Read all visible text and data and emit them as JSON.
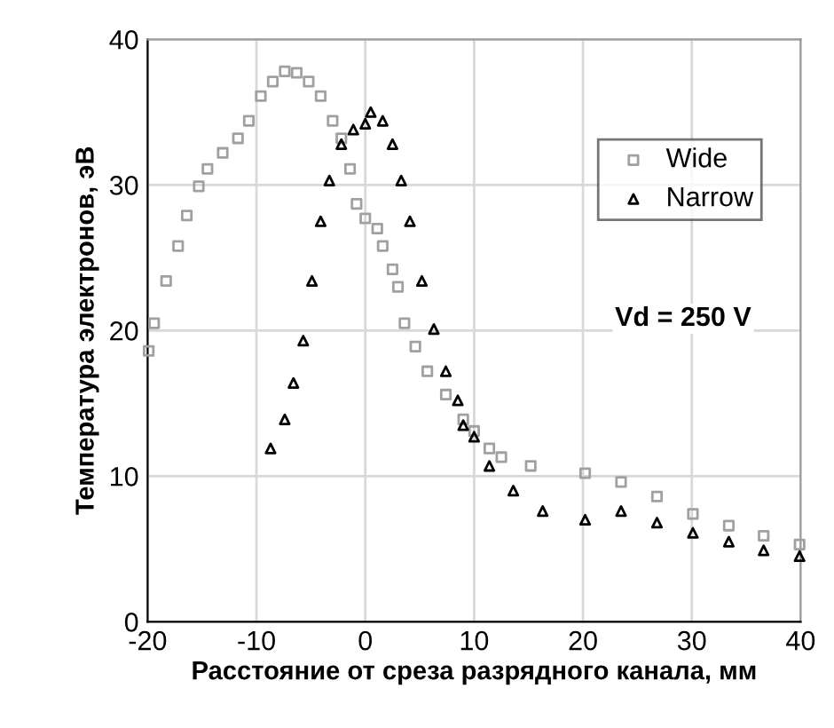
{
  "chart_data": {
    "type": "scatter",
    "xlabel": "Расстояние от среза разрядного канала, мм",
    "ylabel": "Температура электронов, эВ",
    "xlim": [
      -20,
      40
    ],
    "ylim": [
      0,
      40
    ],
    "xticks": [
      -20,
      -10,
      0,
      10,
      20,
      30,
      40
    ],
    "yticks": [
      0,
      10,
      20,
      30,
      40
    ],
    "grid": true,
    "legend": "top right",
    "annotations": [
      "Vd = 250 V"
    ],
    "series": [
      {
        "name": "Wide",
        "color": "#a0a0a0",
        "marker": "square",
        "x": [
          -19.9,
          -19.4,
          -18.3,
          -17.2,
          -16.4,
          -15.3,
          -14.5,
          -13.1,
          -11.7,
          -10.7,
          -9.6,
          -8.5,
          -7.4,
          -6.3,
          -5.2,
          -4.1,
          -3.0,
          -2.2,
          -1.4,
          -0.8,
          0,
          1.1,
          1.6,
          2.5,
          3.0,
          3.6,
          4.6,
          5.7,
          7.4,
          9.0,
          10,
          11.4,
          12.5,
          15.2,
          20.2,
          23.5,
          26.8,
          30.1,
          33.4,
          36.6,
          39.9
        ],
        "values": [
          18.6,
          20.5,
          23.4,
          25.8,
          27.9,
          29.9,
          31.1,
          32.2,
          33.2,
          34.4,
          36.1,
          37.1,
          37.8,
          37.7,
          37.1,
          36.1,
          34.4,
          33.2,
          31.1,
          28.7,
          27.7,
          27.0,
          25.8,
          24.2,
          23.0,
          20.5,
          18.9,
          17.2,
          15.6,
          13.9,
          13.1,
          11.9,
          11.3,
          10.7,
          10.2,
          9.6,
          8.6,
          7.4,
          6.6,
          5.9,
          5.3
        ]
      },
      {
        "name": "Narrow",
        "color": "#000000",
        "marker": "triangle",
        "x": [
          -8.7,
          -7.4,
          -6.6,
          -5.7,
          -4.9,
          -4.1,
          -3.3,
          -2.2,
          -1.1,
          0,
          0.5,
          1.6,
          2.5,
          3.3,
          4.1,
          5.2,
          6.3,
          7.4,
          8.5,
          9.0,
          10,
          11.4,
          13.6,
          16.3,
          20.2,
          23.5,
          26.8,
          30.1,
          33.4,
          36.6,
          39.9
        ],
        "values": [
          11.9,
          13.9,
          16.4,
          19.3,
          23.4,
          27.5,
          30.3,
          32.8,
          33.8,
          34.2,
          35.0,
          34.4,
          32.8,
          30.3,
          27.5,
          23.4,
          20.1,
          17.2,
          15.2,
          13.5,
          12.7,
          10.7,
          9.0,
          7.6,
          7.0,
          7.6,
          6.8,
          6.1,
          5.5,
          4.9,
          4.5
        ]
      }
    ]
  }
}
